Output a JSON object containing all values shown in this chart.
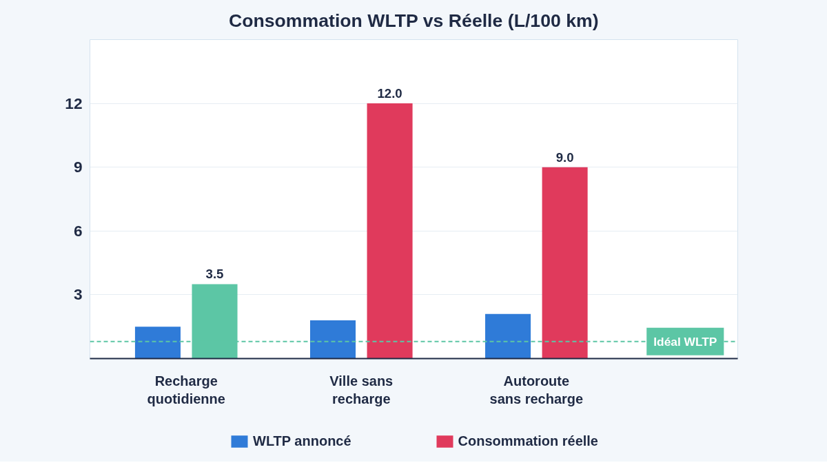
{
  "chart_data": {
    "type": "bar",
    "title": "Consommation WLTP vs Réelle (L/100 km)",
    "categories": [
      "Recharge\nquotidienne",
      "Ville sans\nrecharge",
      "Autoroute\nsans recharge"
    ],
    "series": [
      {
        "name": "WLTP annoncé",
        "color": "#2f7bd8",
        "values": [
          1.5,
          1.8,
          2.1
        ]
      },
      {
        "name": "Consommation réelle",
        "color": "#e03a5c",
        "colors": [
          "#5cc6a5",
          "#e03a5c",
          "#e03a5c"
        ],
        "values": [
          3.5,
          12.0,
          9.0
        ],
        "value_labels": [
          "3.5",
          "12.0",
          "9.0"
        ]
      }
    ],
    "ylim": [
      0,
      15
    ],
    "yticks": [
      3,
      6,
      9,
      12
    ],
    "grid": "y",
    "legend": "bottom",
    "ref_lines": [
      {
        "axis": "y",
        "value": 0.8,
        "label": "Idéal WLTP",
        "color": "#5cc6a5",
        "line_style": "dashed"
      }
    ]
  }
}
